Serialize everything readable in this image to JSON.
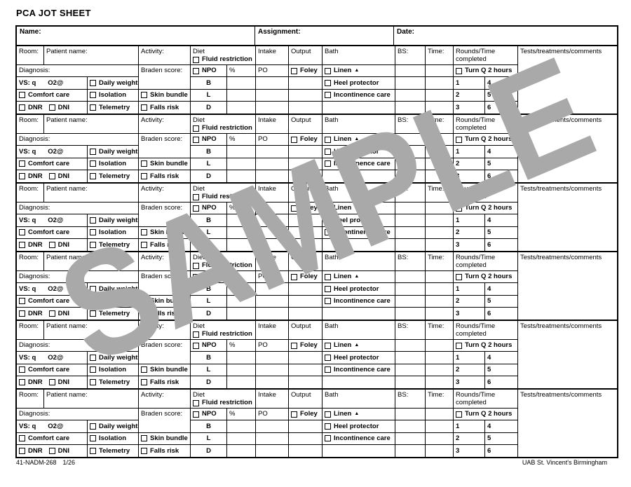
{
  "title": "PCA JOT SHEET",
  "watermark": {
    "text": "SAMPLE",
    "color": "#a9a9a9"
  },
  "header": {
    "name": "Name:",
    "assignment": "Assignment:",
    "date": "Date:"
  },
  "block": {
    "room": "Room:",
    "patient_name": "Patient name:",
    "activity": "Activity:",
    "diet": "Diet",
    "fluid_restriction": "Fluid restriction",
    "intake": "Intake",
    "output": "Output",
    "bath": "Bath",
    "bs": "BS:",
    "time": "Time:",
    "rounds": "Rounds/Time completed",
    "tests": "Tests/treatments/comments",
    "diagnosis": "Diagnosis:",
    "braden": "Braden score:",
    "npo": "NPO",
    "percent": "%",
    "po": "PO",
    "foley": "Foley",
    "linen": "Linen",
    "linen_marker": "▲",
    "turn": "Turn Q 2 hours",
    "vs": "VS: q",
    "o2": "O2@",
    "daily_weight": "Daily weight",
    "heel_protector": "Heel protector",
    "comfort_care": "Comfort care",
    "isolation": "Isolation",
    "skin_bundle": "Skin bundle",
    "incontinence_care": "Incontinence care",
    "dnr": "DNR",
    "dni": "DNI",
    "telemetry": "Telemetry",
    "falls_risk": "Falls risk",
    "meals": {
      "b": "B",
      "l": "L",
      "d": "D"
    },
    "round_numbers": [
      [
        "1",
        "4"
      ],
      [
        "2",
        "5"
      ],
      [
        "3",
        "6"
      ]
    ]
  },
  "footer": {
    "form_code": "41-NADM-268",
    "page": "1/26",
    "org": "UAB St. Vincent's Birmingham"
  }
}
